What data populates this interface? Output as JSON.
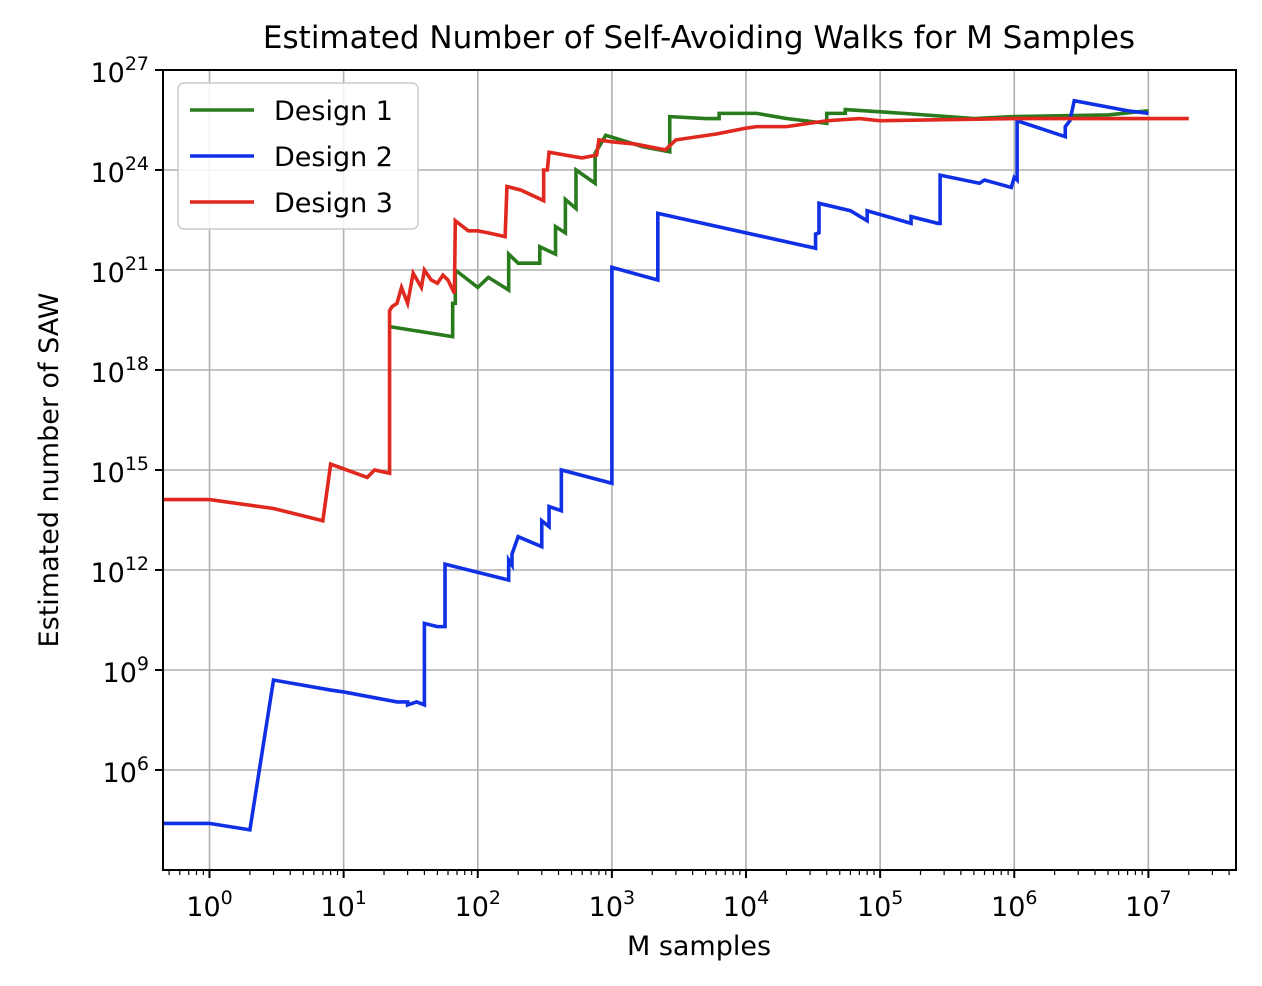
{
  "chart_data": {
    "type": "line",
    "title": "Estimated Number of Self-Avoiding Walks for M Samples",
    "xlabel": "M samples",
    "ylabel": "Estimated number of SAW",
    "xscale": "log",
    "yscale": "log",
    "xlim": [
      0.45,
      45000000
    ],
    "ylim": [
      1000.0,
      1e+27
    ],
    "grid": true,
    "legend_position": "top-left",
    "x_ticks": [
      {
        "value": 1,
        "base": "10",
        "exp": "0"
      },
      {
        "value": 10,
        "base": "10",
        "exp": "1"
      },
      {
        "value": 100,
        "base": "10",
        "exp": "2"
      },
      {
        "value": 1000,
        "base": "10",
        "exp": "3"
      },
      {
        "value": 10000,
        "base": "10",
        "exp": "4"
      },
      {
        "value": 100000,
        "base": "10",
        "exp": "5"
      },
      {
        "value": 1000000,
        "base": "10",
        "exp": "6"
      },
      {
        "value": 10000000,
        "base": "10",
        "exp": "7"
      }
    ],
    "y_ticks": [
      {
        "value": 1000000.0,
        "base": "10",
        "exp": "6"
      },
      {
        "value": 1000000000.0,
        "base": "10",
        "exp": "9"
      },
      {
        "value": 1000000000000.0,
        "base": "10",
        "exp": "12"
      },
      {
        "value": 1000000000000000.0,
        "base": "10",
        "exp": "15"
      },
      {
        "value": 1e+18,
        "base": "10",
        "exp": "18"
      },
      {
        "value": 1e+21,
        "base": "10",
        "exp": "21"
      },
      {
        "value": 1e+24,
        "base": "10",
        "exp": "24"
      },
      {
        "value": 1e+27,
        "base": "10",
        "exp": "27"
      }
    ],
    "series": [
      {
        "name": "Design 1",
        "color": "#2a7a1e",
        "points": [
          [
            22,
            2e+19
          ],
          [
            65,
            1e+19
          ],
          [
            65,
            1e+20
          ],
          [
            68,
            1e+20
          ],
          [
            68,
            1e+21
          ],
          [
            100,
            3e+20
          ],
          [
            120,
            6e+20
          ],
          [
            170,
            2.5e+20
          ],
          [
            170,
            3e+21
          ],
          [
            200,
            1.6e+21
          ],
          [
            290,
            1.6e+21
          ],
          [
            290,
            5e+21
          ],
          [
            380,
            3e+21
          ],
          [
            380,
            2e+22
          ],
          [
            450,
            1.3e+22
          ],
          [
            450,
            1.3e+23
          ],
          [
            540,
            7e+22
          ],
          [
            540,
            1e+24
          ],
          [
            750,
            4e+23
          ],
          [
            750,
            3.2e+24
          ],
          [
            900,
            1.1e+25
          ],
          [
            1700,
            5e+24
          ],
          [
            2700,
            3.5e+24
          ],
          [
            2700,
            4e+25
          ],
          [
            5000,
            3.5e+25
          ],
          [
            6300,
            3.5e+25
          ],
          [
            6300,
            5e+25
          ],
          [
            12000,
            5e+25
          ],
          [
            20000,
            3.5e+25
          ],
          [
            40000,
            2.5e+25
          ],
          [
            40000,
            5e+25
          ],
          [
            55000,
            5e+25
          ],
          [
            55000,
            6.5e+25
          ],
          [
            150000,
            5e+25
          ],
          [
            500000,
            3.5e+25
          ],
          [
            1000000,
            4e+25
          ],
          [
            5000000,
            4.5e+25
          ],
          [
            10000000,
            6e+25
          ]
        ]
      },
      {
        "name": "Design 2",
        "color": "#1030e6",
        "points": [
          [
            0.45,
            25000.0
          ],
          [
            1,
            25000.0
          ],
          [
            2,
            16000.0
          ],
          [
            3,
            500000000.0
          ],
          [
            8,
            250000000.0
          ],
          [
            10,
            220000000.0
          ],
          [
            25,
            110000000.0
          ],
          [
            30,
            110000000.0
          ],
          [
            30,
            90000000.0
          ],
          [
            35,
            110000000.0
          ],
          [
            40,
            90000000.0
          ],
          [
            40,
            25000000000.0
          ],
          [
            50,
            20000000000.0
          ],
          [
            57,
            20000000000.0
          ],
          [
            57,
            1500000000000.0
          ],
          [
            170,
            500000000000.0
          ],
          [
            170,
            2000000000000.0
          ],
          [
            180,
            1400000000000.0
          ],
          [
            180,
            3000000000000.0
          ],
          [
            200,
            10000000000000.0
          ],
          [
            300,
            5000000000000.0
          ],
          [
            300,
            30000000000000.0
          ],
          [
            340,
            20000000000000.0
          ],
          [
            340,
            80000000000000.0
          ],
          [
            420,
            60000000000000.0
          ],
          [
            420,
            1000000000000000.0
          ],
          [
            1000,
            400000000000000.0
          ],
          [
            1000,
            1.2e+21
          ],
          [
            2200,
            5e+20
          ],
          [
            2200,
            5e+22
          ],
          [
            33000,
            4.5e+21
          ],
          [
            33000,
            1.2e+22
          ],
          [
            35000,
            1.3e+22
          ],
          [
            35000,
            1e+23
          ],
          [
            60000,
            6e+22
          ],
          [
            80000,
            3e+22
          ],
          [
            80000,
            6e+22
          ],
          [
            170000,
            2.5e+22
          ],
          [
            170000,
            4e+22
          ],
          [
            270000,
            2.5e+22
          ],
          [
            280000,
            2.5e+22
          ],
          [
            280000,
            7e+23
          ],
          [
            550000,
            4e+23
          ],
          [
            600000,
            5e+23
          ],
          [
            950000,
            3e+23
          ],
          [
            1000000,
            6e+23
          ],
          [
            1050000,
            5e+23
          ],
          [
            1050000,
            3e+25
          ],
          [
            2400000,
            1e+25
          ],
          [
            2400000,
            2e+25
          ],
          [
            2600000,
            3e+25
          ],
          [
            2800000,
            1.2e+26
          ],
          [
            7000000,
            6e+25
          ],
          [
            10000000,
            5e+25
          ]
        ]
      },
      {
        "name": "Design 3",
        "color": "#e0281e",
        "points": [
          [
            0.45,
            130000000000000.0
          ],
          [
            1,
            130000000000000.0
          ],
          [
            3,
            70000000000000.0
          ],
          [
            7,
            30000000000000.0
          ],
          [
            8,
            1500000000000000.0
          ],
          [
            15,
            600000000000000.0
          ],
          [
            17,
            1000000000000000.0
          ],
          [
            22,
            800000000000000.0
          ],
          [
            22,
            6e+19
          ],
          [
            23,
            8e+19
          ],
          [
            25,
            1e+20
          ],
          [
            27,
            3e+20
          ],
          [
            30,
            1e+20
          ],
          [
            33,
            8e+20
          ],
          [
            38,
            3e+20
          ],
          [
            40,
            1e+21
          ],
          [
            45,
            5e+20
          ],
          [
            50,
            4e+20
          ],
          [
            55,
            7e+20
          ],
          [
            60,
            5e+20
          ],
          [
            67,
            2e+20
          ],
          [
            68,
            3e+22
          ],
          [
            85,
            1.5e+22
          ],
          [
            100,
            1.5e+22
          ],
          [
            120,
            1.3e+22
          ],
          [
            160,
            1e+22
          ],
          [
            165,
            3.2e+23
          ],
          [
            210,
            2.5e+23
          ],
          [
            310,
            1.2e+23
          ],
          [
            310,
            1e+24
          ],
          [
            330,
            1e+24
          ],
          [
            340,
            3.4e+24
          ],
          [
            500,
            2.6e+24
          ],
          [
            600,
            2.3e+24
          ],
          [
            770,
            2.8e+24
          ],
          [
            800,
            8e+24
          ],
          [
            1000,
            7e+24
          ],
          [
            1500,
            6e+24
          ],
          [
            2500,
            4e+24
          ],
          [
            3000,
            8e+24
          ],
          [
            6000,
            1.2e+25
          ],
          [
            10000,
            1.8e+25
          ],
          [
            12000,
            2e+25
          ],
          [
            20000,
            2e+25
          ],
          [
            40000,
            3e+25
          ],
          [
            70000,
            3.5e+25
          ],
          [
            100000,
            3e+25
          ],
          [
            1000000,
            3.5e+25
          ],
          [
            20000000,
            3.5e+25
          ]
        ]
      }
    ]
  }
}
